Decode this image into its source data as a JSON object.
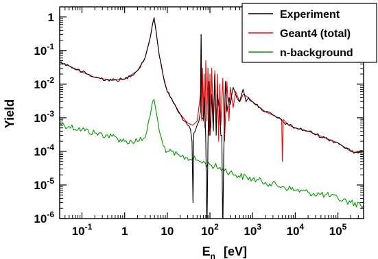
{
  "chart_data": {
    "type": "line",
    "title": "",
    "xlabel_main": "E",
    "xlabel_sub": "n",
    "xlabel_unit": "[eV]",
    "ylabel": "Yield",
    "xscale": "log",
    "yscale": "log",
    "xlim": [
      0.03,
      400000
    ],
    "ylim": [
      1e-06,
      2
    ],
    "grid": false,
    "legend_position": "top-right",
    "x_ticks": [
      {
        "value": 0.1,
        "base": "10",
        "exp": "-1"
      },
      {
        "value": 1,
        "base": "1",
        "exp": ""
      },
      {
        "value": 10,
        "base": "10",
        "exp": ""
      },
      {
        "value": 100,
        "base": "10",
        "exp": "2"
      },
      {
        "value": 1000,
        "base": "10",
        "exp": "3"
      },
      {
        "value": 10000,
        "base": "10",
        "exp": "4"
      },
      {
        "value": 100000,
        "base": "10",
        "exp": "5"
      }
    ],
    "y_ticks": [
      {
        "value": 1,
        "base": "1",
        "exp": ""
      },
      {
        "value": 0.1,
        "base": "10",
        "exp": "-1"
      },
      {
        "value": 0.01,
        "base": "10",
        "exp": "-2"
      },
      {
        "value": 0.001,
        "base": "10",
        "exp": "-3"
      },
      {
        "value": 0.0001,
        "base": "10",
        "exp": "-4"
      },
      {
        "value": 1e-05,
        "base": "10",
        "exp": "-5"
      },
      {
        "value": 1e-06,
        "base": "10",
        "exp": "-6"
      }
    ],
    "series": [
      {
        "name": "Experiment",
        "color": "#000000",
        "x": [
          0.03,
          0.05,
          0.1,
          0.2,
          0.5,
          1,
          2,
          3,
          4,
          4.5,
          4.9,
          5.5,
          6.5,
          8,
          10,
          15,
          20,
          25,
          30,
          35,
          38,
          40,
          42,
          45,
          50,
          55,
          60,
          62,
          65,
          70,
          75,
          80,
          85,
          90,
          95,
          100,
          110,
          120,
          130,
          140,
          150,
          170,
          180,
          190,
          200,
          210,
          230,
          250,
          280,
          300,
          350,
          400,
          500,
          600,
          700,
          800,
          1000,
          1500,
          2000,
          3000,
          5000,
          7000,
          10000,
          20000,
          50000,
          100000,
          200000,
          300000,
          400000
        ],
        "y": [
          0.045,
          0.035,
          0.023,
          0.016,
          0.013,
          0.014,
          0.025,
          0.06,
          0.25,
          0.6,
          0.95,
          0.35,
          0.07,
          0.018,
          0.006,
          0.0025,
          0.0013,
          0.0008,
          0.0006,
          0.00045,
          0.0002,
          3e-06,
          0.00035,
          0.0004,
          0.0006,
          0.0008,
          0.0015,
          0.3,
          0.001,
          0.0009,
          0.004,
          0.0002,
          3.5e-07,
          0.0002,
          0.012,
          0.0003,
          0.005,
          0.0004,
          0.02,
          0.0003,
          0.005,
          0.0015,
          0.0003,
          0.0003,
          3e-07,
          8e-05,
          0.012,
          0.0015,
          0.004,
          0.0025,
          0.008,
          0.005,
          0.003,
          0.007,
          0.003,
          0.004,
          0.003,
          0.002,
          0.0015,
          0.0012,
          0.0008,
          0.0006,
          0.0005,
          0.0004,
          0.00025,
          0.00018,
          0.0001,
          9e-05,
          0.0001
        ]
      },
      {
        "name": "Geant4 (total)",
        "color": "#ff0000",
        "x": [
          0.03,
          0.05,
          0.1,
          0.2,
          0.5,
          1,
          2,
          3,
          4,
          4.5,
          4.9,
          5.5,
          6.5,
          8,
          10,
          15,
          20,
          30,
          40,
          50,
          55,
          60,
          62,
          64,
          67,
          70,
          73,
          76,
          80,
          85,
          90,
          95,
          100,
          105,
          110,
          120,
          130,
          140,
          150,
          160,
          170,
          180,
          200,
          220,
          250,
          280,
          300,
          350,
          400,
          500,
          600,
          800,
          1000,
          1500,
          2000,
          3000,
          4000,
          4800,
          5000,
          5200,
          7000,
          10000,
          20000,
          50000,
          100000,
          200000,
          300000,
          400000
        ],
        "y": [
          0.045,
          0.035,
          0.023,
          0.016,
          0.013,
          0.014,
          0.025,
          0.06,
          0.25,
          0.6,
          0.95,
          0.35,
          0.07,
          0.018,
          0.006,
          0.0025,
          0.0013,
          0.0007,
          0.0006,
          0.0008,
          0.002,
          0.005,
          0.3,
          0.0008,
          0.03,
          0.0008,
          0.02,
          0.0005,
          0.05,
          0.0008,
          0.03,
          0.0003,
          0.02,
          0.0005,
          0.03,
          0.0008,
          0.025,
          0.0006,
          0.02,
          0.0002,
          0.01,
          0.0006,
          0.015,
          0.0002,
          0.012,
          0.0008,
          0.008,
          0.002,
          0.006,
          0.003,
          0.005,
          0.004,
          0.003,
          0.002,
          0.0015,
          0.0012,
          0.001,
          0.0009,
          5e-05,
          0.0009,
          0.0006,
          0.0005,
          0.0004,
          0.00025,
          0.00018,
          0.0001,
          9e-05,
          0.0001
        ]
      },
      {
        "name": "n-background",
        "color": "#009900",
        "x": [
          0.03,
          0.05,
          0.1,
          0.2,
          0.5,
          1,
          2,
          3,
          4,
          4.5,
          4.9,
          5.5,
          6.5,
          8,
          10,
          20,
          40,
          60,
          100,
          200,
          400,
          1000,
          2000,
          5000,
          10000,
          20000,
          50000,
          100000,
          200000,
          400000
        ],
        "y": [
          0.0007,
          0.00055,
          0.00045,
          0.00035,
          0.00028,
          0.0002,
          0.0002,
          0.00025,
          0.0012,
          0.003,
          0.0035,
          0.0015,
          0.0004,
          0.00015,
          0.0001,
          7e-05,
          6e-05,
          5e-05,
          4e-05,
          3e-05,
          2e-05,
          1.5e-05,
          1.2e-05,
          9e-06,
          7e-06,
          6e-06,
          5e-06,
          4e-06,
          3e-06,
          2.5e-06
        ]
      }
    ]
  }
}
